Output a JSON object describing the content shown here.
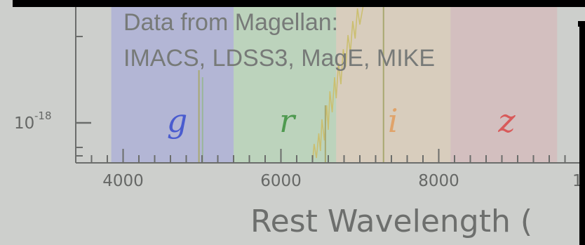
{
  "chart_data": {
    "type": "line",
    "xlabel": "Rest Wavelength (",
    "xlim": [
      3400,
      11000
    ],
    "x_ticks": [
      "4000",
      "6000",
      "8000",
      "1"
    ],
    "y_scale": "log",
    "y_ticks": [
      {
        "base": "10",
        "exp": "-18"
      }
    ],
    "annotation": {
      "line1": "Data from Magellan:",
      "line2": "IMACS, LDSS3, MagE, MIKE"
    },
    "bands": [
      {
        "label": "g",
        "from": 3850,
        "to": 5400,
        "color": "#aeb2d6",
        "text_color": "#4a5ccf"
      },
      {
        "label": "r",
        "from": 5400,
        "to": 6700,
        "color": "#b8d4b8",
        "text_color": "#4f9a50"
      },
      {
        "label": "i",
        "from": 6700,
        "to": 8150,
        "color": "#d9ccba",
        "text_color": "#e0a36a"
      },
      {
        "label": "z",
        "from": 8150,
        "to": 9500,
        "color": "#d4bcbc",
        "text_color": "#d85a5a"
      }
    ],
    "colors": {
      "background": "#cdcfcc",
      "axis": "#6b6d6b",
      "spectrum": "#cbbf70",
      "frame": "#000000"
    }
  }
}
